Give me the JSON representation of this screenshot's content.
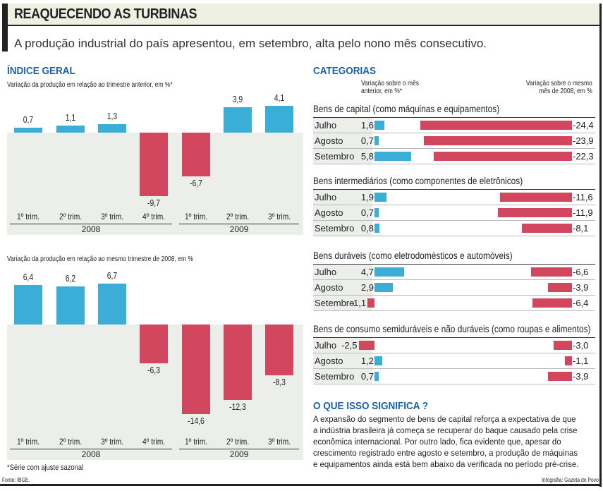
{
  "header": {
    "title": "REAQUECENDO AS TURBINAS",
    "subtitle": "A produção industrial do país apresentou, em setembro, alta pelo nono mês consecutivo."
  },
  "left": {
    "section_title": "ÍNDICE GERAL",
    "footnote": "*Série com ajuste sazonal",
    "source": "Fonte: IBGE."
  },
  "chart_data": [
    {
      "type": "bar",
      "title": "Variação da produção em relação ao trimestre anterior, em %*",
      "categories": [
        "1º trim.",
        "2º trim.",
        "3º trim.",
        "4º trim.",
        "1º trim.",
        "2º trim.",
        "3º trim."
      ],
      "groups": [
        "2008",
        "2009"
      ],
      "values": [
        0.7,
        1.1,
        1.3,
        -9.7,
        -6.7,
        3.9,
        4.1
      ],
      "labels": [
        "0,7",
        "1,1",
        "1,3",
        "-9,7",
        "-6,7",
        "3,9",
        "4,1"
      ],
      "colors": {
        "positive": "#3aaed6",
        "negative": "#d2475e"
      }
    },
    {
      "type": "bar",
      "title": "Variação da produção em relação ao mesmo trimestre de 2008, em %",
      "categories": [
        "1º trim.",
        "2º trim.",
        "3º trim.",
        "4º trim.",
        "1º trim.",
        "2º trim.",
        "3º trim."
      ],
      "groups": [
        "2008",
        "2009"
      ],
      "values": [
        6.4,
        6.2,
        6.7,
        -6.3,
        -14.6,
        -12.3,
        -8.3
      ],
      "labels": [
        "6,4",
        "6,2",
        "6,7",
        "-6,3",
        "-14,6",
        "-12,3",
        "-8,3"
      ],
      "colors": {
        "positive": "#3aaed6",
        "negative": "#d2475e"
      }
    },
    {
      "type": "bar",
      "title": "CATEGORIAS",
      "col_left": "Variação sobre o mês anterior, em %*",
      "col_right": "Variação sobre o mesmo mês de 2008, em %",
      "categories": [
        {
          "name": "Bens de capital (como máquinas e equipamentos)",
          "rows": [
            {
              "month": "Julho",
              "prev": 1.6,
              "prev_label": "1,6",
              "yoy": -24.4,
              "yoy_label": "-24,4"
            },
            {
              "month": "Agosto",
              "prev": 0.7,
              "prev_label": "0,7",
              "yoy": -23.9,
              "yoy_label": "-23,9"
            },
            {
              "month": "Setembro",
              "prev": 5.8,
              "prev_label": "5,8",
              "yoy": -22.3,
              "yoy_label": "-22,3"
            }
          ]
        },
        {
          "name": "Bens intermediários (como componentes de eletrônicos)",
          "rows": [
            {
              "month": "Julho",
              "prev": 1.9,
              "prev_label": "1,9",
              "yoy": -11.6,
              "yoy_label": "-11,6"
            },
            {
              "month": "Agosto",
              "prev": 0.7,
              "prev_label": "0,7",
              "yoy": -11.9,
              "yoy_label": "-11,9"
            },
            {
              "month": "Setembro",
              "prev": 0.8,
              "prev_label": "0,8",
              "yoy": -8.1,
              "yoy_label": "-8,1"
            }
          ]
        },
        {
          "name": "Bens duráveis (como eletrodomésticos e automóveis)",
          "rows": [
            {
              "month": "Julho",
              "prev": 4.7,
              "prev_label": "4,7",
              "yoy": -6.6,
              "yoy_label": "-6,6"
            },
            {
              "month": "Agosto",
              "prev": 2.9,
              "prev_label": "2,9",
              "yoy": -3.9,
              "yoy_label": "-3,9"
            },
            {
              "month": "Setembro",
              "prev": -1.1,
              "prev_label": "-1,1",
              "yoy": -6.4,
              "yoy_label": "-6,4"
            }
          ]
        },
        {
          "name": "Bens de consumo semiduráveis e não duráveis (como roupas e alimentos)",
          "rows": [
            {
              "month": "Julho",
              "prev": -2.5,
              "prev_label": "-2,5",
              "yoy": -3.0,
              "yoy_label": "-3,0"
            },
            {
              "month": "Agosto",
              "prev": 1.2,
              "prev_label": "1,2",
              "yoy": -1.1,
              "yoy_label": "-1,1"
            },
            {
              "month": "Setembro",
              "prev": 0.7,
              "prev_label": "0,7",
              "yoy": -3.9,
              "yoy_label": "-3,9"
            }
          ]
        }
      ]
    }
  ],
  "right": {
    "section_title": "CATEGORIAS",
    "meaning_title": "O QUE ISSO SIGNIFICA ?",
    "meaning_text": "A expansão do segmento de bens de capital reforça a expectativa de que a indústria brasileira já começa se recuperar do baque causado pela crise econômica internacional. Por outro lado, fica evidente que, apesar do crescimento registrado entre agosto e setembro, a produção de máquinas e equipamentos ainda está bem abaixo da verificada no período pré-crise.",
    "credit": "Infografia: Gazeta do Povo"
  }
}
